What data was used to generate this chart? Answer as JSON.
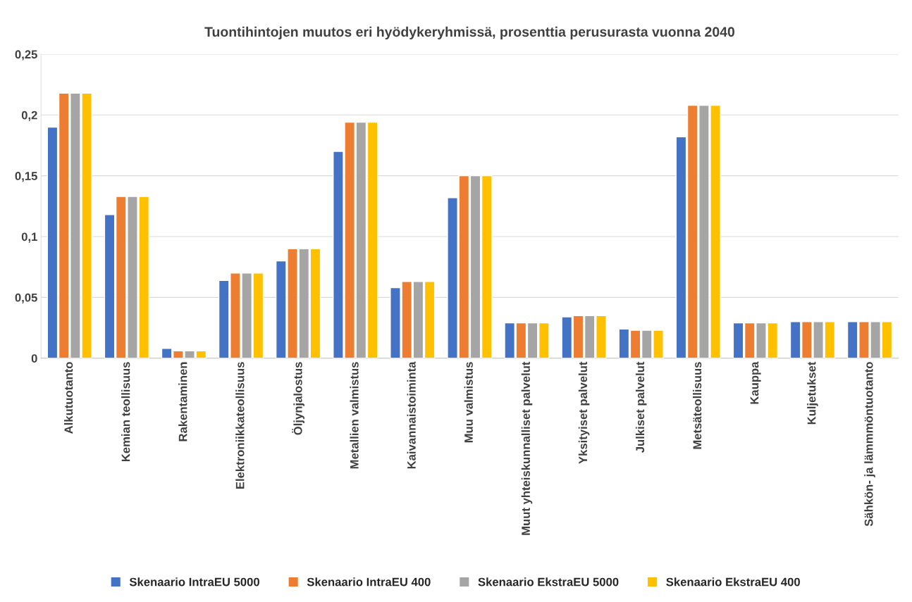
{
  "chart_data": {
    "type": "bar",
    "title": "Tuontihintojen muutos eri hyödykeryhmissä, prosenttia perusurasta vuonna 2040",
    "categories": [
      "Alkutuotanto",
      "Kemian teollisuus",
      "Rakentaminen",
      "Elektroniikkateollisuus",
      "Öljynjalostus",
      "Metallien valmistus",
      "Kaivannaistoiminta",
      "Muu valmistus",
      "Muut yhteiskunnalliset palvelut",
      "Yksityiset palvelut",
      "Julkiset palvelut",
      "Metsäteollisuus",
      "Kauppa",
      "Kuljetukset",
      "Sähkön- ja lämmmöntuotanto"
    ],
    "series": [
      {
        "name": "Skenaario IntraEU 5000",
        "color": "#4472c4",
        "values": [
          0.19,
          0.118,
          0.008,
          0.064,
          0.08,
          0.17,
          0.058,
          0.132,
          0.029,
          0.034,
          0.024,
          0.182,
          0.029,
          0.03,
          0.03
        ]
      },
      {
        "name": "Skenaario IntraEU 400",
        "color": "#ed7d31",
        "values": [
          0.218,
          0.133,
          0.006,
          0.07,
          0.09,
          0.194,
          0.063,
          0.15,
          0.029,
          0.035,
          0.023,
          0.208,
          0.029,
          0.03,
          0.03
        ]
      },
      {
        "name": "Skenaario EkstraEU 5000",
        "color": "#a5a5a5",
        "values": [
          0.218,
          0.133,
          0.006,
          0.07,
          0.09,
          0.194,
          0.063,
          0.15,
          0.029,
          0.035,
          0.023,
          0.208,
          0.029,
          0.03,
          0.03
        ]
      },
      {
        "name": "Skenaario EkstraEU 400",
        "color": "#ffc000",
        "values": [
          0.218,
          0.133,
          0.006,
          0.07,
          0.09,
          0.194,
          0.063,
          0.15,
          0.029,
          0.035,
          0.023,
          0.208,
          0.029,
          0.03,
          0.03
        ]
      }
    ],
    "ylim": [
      0,
      0.25
    ],
    "yticks": [
      0,
      {
        "value": 0.05,
        "label": "0,05"
      },
      {
        "value": 0.1,
        "label": "0,1"
      },
      {
        "value": 0.15,
        "label": "0,15"
      },
      {
        "value": 0.2,
        "label": "0,2"
      },
      {
        "value": 0.25,
        "label": "0,25"
      }
    ],
    "grid": "y",
    "legend": "bottom"
  }
}
